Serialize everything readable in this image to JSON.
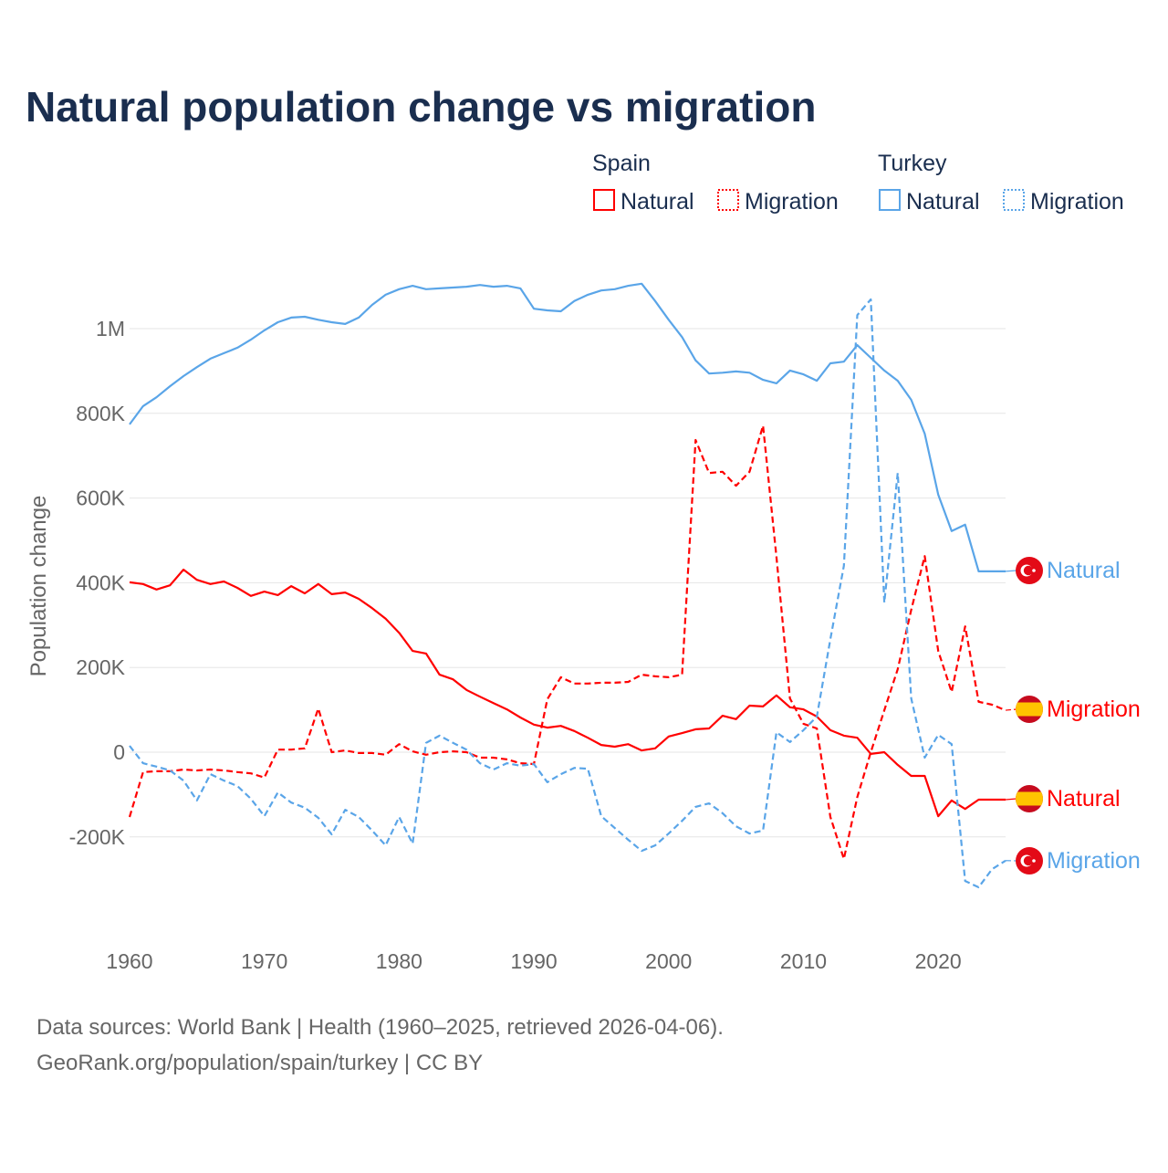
{
  "chart_data": {
    "type": "line",
    "title": "Natural population change vs migration",
    "xlabel": "",
    "ylabel": "Population change",
    "xlim": [
      1960,
      2025
    ],
    "ylim": [
      -400000,
      1150000
    ],
    "grid": true,
    "x_ticks": [
      1960,
      1970,
      1980,
      1990,
      2000,
      2010,
      2020
    ],
    "x_tick_labels": [
      "1960",
      "1970",
      "1980",
      "1990",
      "2000",
      "2010",
      "2020"
    ],
    "y_ticks": [
      -200000,
      0,
      200000,
      400000,
      600000,
      800000,
      1000000
    ],
    "y_tick_labels": [
      "-200K",
      "0",
      "200K",
      "400K",
      "600K",
      "800K",
      "1M"
    ],
    "legend": {
      "placement": "top-right",
      "groups": [
        {
          "title": "Spain",
          "items": [
            "Natural",
            "Migration"
          ]
        },
        {
          "title": "Turkey",
          "items": [
            "Natural",
            "Migration"
          ]
        }
      ]
    },
    "x": [
      1960,
      1961,
      1962,
      1963,
      1964,
      1965,
      1966,
      1967,
      1968,
      1969,
      1970,
      1971,
      1972,
      1973,
      1974,
      1975,
      1976,
      1977,
      1978,
      1979,
      1980,
      1981,
      1982,
      1983,
      1984,
      1985,
      1986,
      1987,
      1988,
      1989,
      1990,
      1991,
      1992,
      1993,
      1994,
      1995,
      1996,
      1997,
      1998,
      1999,
      2000,
      2001,
      2002,
      2003,
      2004,
      2005,
      2006,
      2007,
      2008,
      2009,
      2010,
      2011,
      2012,
      2013,
      2014,
      2015,
      2016,
      2017,
      2018,
      2019,
      2020,
      2021,
      2022,
      2023,
      2024,
      2025
    ],
    "series": [
      {
        "name": "Natural",
        "country": "Spain",
        "color": "#ff0000",
        "dash": "solid",
        "end_label": "Natural",
        "values": [
          401000,
          397000,
          384000,
          394000,
          431000,
          407000,
          397000,
          403000,
          388000,
          369000,
          379000,
          371000,
          392000,
          375000,
          397000,
          373000,
          377000,
          362000,
          340000,
          315000,
          282000,
          239000,
          233000,
          183000,
          172000,
          147000,
          131000,
          116000,
          101000,
          82000,
          65000,
          58000,
          62000,
          50000,
          34000,
          17000,
          13000,
          19000,
          4000,
          9000,
          37000,
          45000,
          54000,
          56000,
          86000,
          78000,
          110000,
          108000,
          134000,
          106000,
          101000,
          84000,
          52000,
          39000,
          34000,
          -4000,
          0,
          -30000,
          -56000,
          -56000,
          -151000,
          -114000,
          -134000,
          -112000,
          -112000,
          -112000
        ]
      },
      {
        "name": "Migration",
        "country": "Spain",
        "color": "#ff0000",
        "dash": "dashed",
        "end_label": "Migration",
        "values": [
          -153000,
          -47000,
          -45000,
          -45000,
          -41000,
          -43000,
          -41000,
          -43000,
          -47000,
          -50000,
          -60000,
          6000,
          6000,
          9000,
          103000,
          0,
          4000,
          -2000,
          -2000,
          -6000,
          19000,
          2000,
          -6000,
          0,
          2000,
          0,
          -13000,
          -13000,
          -17000,
          -26000,
          -28000,
          125000,
          177000,
          162000,
          162000,
          164000,
          164000,
          166000,
          183000,
          179000,
          177000,
          183000,
          737000,
          659000,
          662000,
          629000,
          662000,
          771000,
          461000,
          127000,
          67000,
          56000,
          -153000,
          -252000,
          -106000,
          0,
          99000,
          196000,
          336000,
          463000,
          239000,
          142000,
          297000,
          119000,
          112000,
          99000
        ]
      },
      {
        "name": "Natural",
        "country": "Turkey",
        "color": "#5aa5e8",
        "dash": "solid",
        "end_label": "Natural",
        "values": [
          774000,
          817000,
          838000,
          864000,
          888000,
          909000,
          929000,
          942000,
          955000,
          974000,
          996000,
          1015000,
          1026000,
          1028000,
          1021000,
          1015000,
          1011000,
          1026000,
          1056000,
          1080000,
          1093000,
          1101000,
          1093000,
          1095000,
          1097000,
          1099000,
          1103000,
          1099000,
          1101000,
          1095000,
          1047000,
          1043000,
          1041000,
          1065000,
          1080000,
          1090000,
          1093000,
          1101000,
          1106000,
          1065000,
          1021000,
          980000,
          925000,
          894000,
          896000,
          899000,
          896000,
          879000,
          871000,
          901000,
          892000,
          877000,
          918000,
          922000,
          961000,
          931000,
          901000,
          877000,
          832000,
          752000,
          608000,
          522000,
          537000,
          427000,
          427000,
          427000
        ]
      },
      {
        "name": "Migration",
        "country": "Turkey",
        "color": "#5aa5e8",
        "dash": "dashed",
        "end_label": "Migration",
        "values": [
          15000,
          -26000,
          -34000,
          -43000,
          -67000,
          -114000,
          -52000,
          -67000,
          -80000,
          -110000,
          -151000,
          -95000,
          -119000,
          -131000,
          -155000,
          -194000,
          -136000,
          -153000,
          -185000,
          -220000,
          -153000,
          -216000,
          22000,
          39000,
          22000,
          6000,
          -26000,
          -41000,
          -26000,
          -32000,
          -28000,
          -71000,
          -52000,
          -37000,
          -39000,
          -151000,
          -179000,
          -207000,
          -233000,
          -220000,
          -192000,
          -162000,
          -129000,
          -121000,
          -144000,
          -175000,
          -192000,
          -185000,
          47000,
          24000,
          52000,
          84000,
          267000,
          440000,
          1032000,
          1069000,
          353000,
          659000,
          127000,
          -13000,
          41000,
          19000,
          -304000,
          -319000,
          -276000,
          -256000
        ]
      }
    ]
  },
  "footer": {
    "source": "Data sources: World Bank | Health (1960–2025, retrieved 2026-04-06).",
    "credit": "GeoRank.org/population/spain/turkey | CC BY"
  }
}
